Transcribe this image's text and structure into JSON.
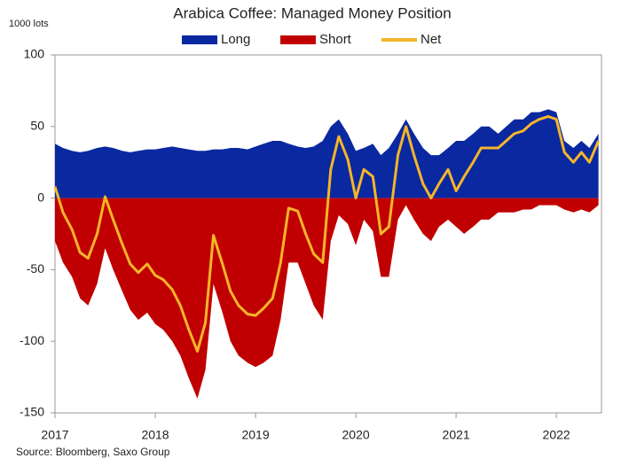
{
  "chart_data": {
    "type": "area-line",
    "title": "Arabica Coffee: Managed Money Position",
    "y_label": "1000 lots",
    "source": "Source: Bloomberg, Saxo Group",
    "x": [
      2017,
      2017.08,
      2017.17,
      2017.25,
      2017.33,
      2017.42,
      2017.5,
      2017.58,
      2017.67,
      2017.75,
      2017.83,
      2017.92,
      2018,
      2018.08,
      2018.17,
      2018.25,
      2018.33,
      2018.42,
      2018.5,
      2018.58,
      2018.67,
      2018.75,
      2018.83,
      2018.92,
      2019,
      2019.08,
      2019.17,
      2019.25,
      2019.33,
      2019.42,
      2019.5,
      2019.58,
      2019.67,
      2019.75,
      2019.83,
      2019.92,
      2020,
      2020.08,
      2020.17,
      2020.25,
      2020.33,
      2020.42,
      2020.5,
      2020.58,
      2020.67,
      2020.75,
      2020.83,
      2020.92,
      2021,
      2021.08,
      2021.17,
      2021.25,
      2021.33,
      2021.42,
      2021.5,
      2021.58,
      2021.67,
      2021.75,
      2021.83,
      2021.92,
      2022,
      2022.08,
      2022.17,
      2022.25,
      2022.33,
      2022.42
    ],
    "series": [
      {
        "name": "Long",
        "color": "#0a28a0",
        "kind": "area",
        "values": [
          38,
          35,
          33,
          32,
          33,
          35,
          36,
          35,
          33,
          32,
          33,
          34,
          34,
          35,
          36,
          35,
          34,
          33,
          33,
          34,
          34,
          35,
          35,
          34,
          36,
          38,
          40,
          40,
          38,
          36,
          35,
          36,
          40,
          50,
          55,
          45,
          33,
          35,
          38,
          30,
          35,
          45,
          55,
          45,
          35,
          30,
          30,
          35,
          40,
          40,
          45,
          50,
          50,
          45,
          50,
          55,
          55,
          60,
          60,
          62,
          60,
          40,
          35,
          40,
          35,
          45
        ]
      },
      {
        "name": "Short",
        "color": "#c00000",
        "kind": "area",
        "values": [
          -30,
          -45,
          -55,
          -70,
          -75,
          -60,
          -35,
          -50,
          -65,
          -78,
          -85,
          -80,
          -88,
          -92,
          -100,
          -110,
          -125,
          -140,
          -120,
          -60,
          -80,
          -100,
          -110,
          -115,
          -118,
          -115,
          -110,
          -85,
          -45,
          -45,
          -60,
          -75,
          -85,
          -30,
          -12,
          -18,
          -33,
          -15,
          -23,
          -55,
          -55,
          -15,
          -5,
          -15,
          -25,
          -30,
          -20,
          -15,
          -20,
          -25,
          -20,
          -15,
          -15,
          -10,
          -10,
          -10,
          -8,
          -8,
          -5,
          -5,
          -5,
          -8,
          -10,
          -8,
          -10,
          -5
        ]
      },
      {
        "name": "Net",
        "color": "#f5b52a",
        "kind": "line",
        "values": [
          8,
          -10,
          -22,
          -38,
          -42,
          -25,
          1,
          -15,
          -32,
          -46,
          -52,
          -46,
          -54,
          -57,
          -64,
          -75,
          -91,
          -107,
          -87,
          -26,
          -46,
          -65,
          -75,
          -81,
          -82,
          -77,
          -70,
          -45,
          -7,
          -9,
          -25,
          -39,
          -45,
          20,
          43,
          27,
          0,
          20,
          15,
          -25,
          -20,
          30,
          50,
          30,
          10,
          0,
          10,
          20,
          5,
          15,
          25,
          35,
          35,
          35,
          40,
          45,
          47,
          52,
          55,
          57,
          55,
          32,
          25,
          32,
          25,
          40
        ]
      }
    ],
    "xlim": [
      2017,
      2022.45
    ],
    "xticks": [
      2017,
      2018,
      2019,
      2020,
      2021,
      2022
    ],
    "ylim": [
      -150,
      100
    ],
    "yticks": [
      -150,
      -100,
      -50,
      0,
      50,
      100
    ]
  }
}
